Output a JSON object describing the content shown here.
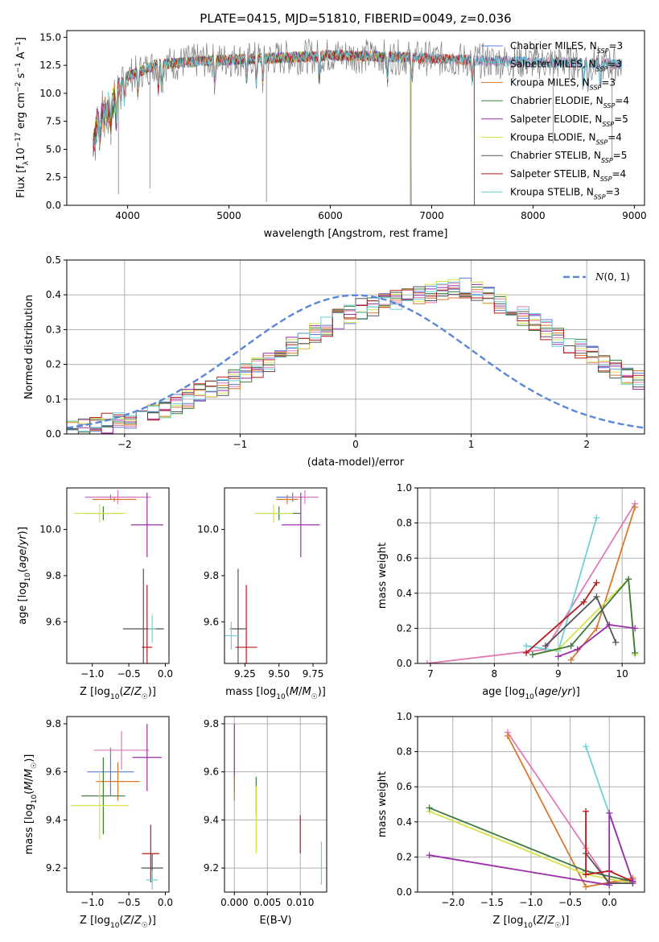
{
  "figure_title": "PLATE=0415, MJD=51810, FIBERID=0049, z=0.036",
  "colors": {
    "Chabrier MILES": "#5b7fd6",
    "Salpeter MILES": "#e07ab4",
    "Kroupa MILES": "#d9782c",
    "Chabrier ELODIE": "#3d7a3d",
    "Salpeter ELODIE": "#9b2ea8",
    "Kroupa ELODIE": "#d5e24a",
    "Chabrier STELIB": "#555555",
    "Salpeter STELIB": "#b81c1c",
    "Kroupa STELIB": "#6fd0d8",
    "grid": "#b0b0b0",
    "gaussian": "#5b87d6"
  },
  "chart_data": [
    {
      "id": "spectrum",
      "type": "line",
      "xlabel": "wavelength [Angstrom, rest frame]",
      "ylabel": "Flux [f",
      "xlim": [
        3400,
        9100
      ],
      "ylim": [
        0,
        15.6
      ],
      "xticks": [
        4000,
        5000,
        6000,
        7000,
        8000,
        9000
      ],
      "yticks": [
        0.0,
        2.5,
        5.0,
        7.5,
        10.0,
        12.5,
        15.0
      ],
      "grid": false,
      "legend_position": "top-right",
      "data_start": 3660,
      "data_end": 8880,
      "continuum": {
        "x": [
          3660,
          3700,
          3800,
          3900,
          4000,
          4100,
          4300,
          4500,
          4700,
          5000,
          5300,
          5600,
          6000,
          6500,
          7000,
          7500,
          8000,
          8500,
          8880
        ],
        "y": [
          6.5,
          8.5,
          10.0,
          10.8,
          11.5,
          11.9,
          12.6,
          12.7,
          12.9,
          13.0,
          13.1,
          13.2,
          13.4,
          13.3,
          13.1,
          12.9,
          12.8,
          12.7,
          12.6
        ]
      },
      "series": [
        {
          "name": "Chabrier MILES, N_SSP=3",
          "label_pre": "Chabrier MILES, N",
          "label_sub": "SSP",
          "label_post": "=3",
          "end": 8880
        },
        {
          "name": "Salpeter MILES, N_SSP=3",
          "label_pre": "Salpeter MILES, N",
          "label_sub": "SSP",
          "label_post": "=3",
          "end": 8880
        },
        {
          "name": "Kroupa MILES, N_SSP=3",
          "label_pre": "Kroupa MILES, N",
          "label_sub": "SSP",
          "label_post": "=3",
          "end": 7420
        },
        {
          "name": "Chabrier ELODIE, N_SSP=4",
          "label_pre": "Chabrier ELODIE, N",
          "label_sub": "SSP",
          "label_post": "=4",
          "end": 6800
        },
        {
          "name": "Salpeter ELODIE, N_SSP=5",
          "label_pre": "Salpeter ELODIE, N",
          "label_sub": "SSP",
          "label_post": "=5",
          "end": 6800
        },
        {
          "name": "Kroupa ELODIE, N_SSP=4",
          "label_pre": "Kroupa ELODIE, N",
          "label_sub": "SSP",
          "label_post": "=4",
          "end": 6800
        },
        {
          "name": "Chabrier STELIB, N_SSP=5",
          "label_pre": "Chabrier STELIB, N",
          "label_sub": "SSP",
          "label_post": "=5",
          "end": 8880
        },
        {
          "name": "Salpeter STELIB, N_SSP=4",
          "label_pre": "Salpeter STELIB, N",
          "label_sub": "SSP",
          "label_post": "=4",
          "end": 7420
        },
        {
          "name": "Kroupa STELIB, N_SSP=3",
          "label_pre": "Kroupa STELIB, N",
          "label_sub": "SSP",
          "label_post": "=3",
          "end": 8880
        }
      ],
      "observed_color": "#808080"
    },
    {
      "id": "residuals",
      "type": "bar",
      "xlabel": "(data-model)/error",
      "ylabel": "Normed distribution",
      "xlim": [
        -2.5,
        2.5
      ],
      "ylim": [
        0,
        0.5
      ],
      "xticks": [
        -2,
        -1,
        0,
        1,
        2
      ],
      "xtick_labels": [
        "−2",
        "−1",
        "0",
        "1",
        "2"
      ],
      "yticks": [
        0.0,
        0.1,
        0.2,
        0.3,
        0.4,
        0.5
      ],
      "grid": true,
      "bin_width": 0.1,
      "x_first": -2.5,
      "counts_mean": [
        0.015,
        0.02,
        0.025,
        0.03,
        0.04,
        0.045,
        0.05,
        0.06,
        0.07,
        0.085,
        0.1,
        0.115,
        0.125,
        0.14,
        0.155,
        0.175,
        0.19,
        0.205,
        0.225,
        0.25,
        0.27,
        0.29,
        0.31,
        0.33,
        0.345,
        0.36,
        0.365,
        0.375,
        0.385,
        0.39,
        0.4,
        0.405,
        0.41,
        0.415,
        0.42,
        0.41,
        0.395,
        0.375,
        0.36,
        0.34,
        0.32,
        0.3,
        0.28,
        0.26,
        0.245,
        0.225,
        0.205,
        0.19,
        0.17,
        0.155,
        0.14,
        0.125,
        0.11,
        0.095,
        0.085,
        0.075,
        0.065,
        0.055,
        0.05,
        0.04,
        0.035,
        0.03,
        0.025,
        0.02,
        0.018
      ],
      "gaussian_legend": "N(0, 1)"
    },
    {
      "id": "z-age",
      "type": "scatter",
      "xlabel": "Z [log10(Z/Z☉)]",
      "ylabel": "age  [log10(age/yr)]",
      "xlim": [
        -1.35,
        0.05
      ],
      "ylim": [
        9.42,
        10.18
      ],
      "xticks": [
        -1.0,
        -0.5,
        0.0
      ],
      "xtick_labels": [
        "−1.0",
        "−0.5",
        "0.0"
      ],
      "yticks": [
        9.6,
        9.8,
        10.0
      ],
      "grid": false,
      "points": [
        {
          "model": "Chabrier MILES",
          "x": -0.75,
          "y": 10.14,
          "xerr": 0.35,
          "yerr": 0.01
        },
        {
          "model": "Salpeter MILES",
          "x": -0.65,
          "y": 10.14,
          "xerr": 0.45,
          "yerr": 0.03
        },
        {
          "model": "Kroupa MILES",
          "x": -0.7,
          "y": 10.13,
          "xerr": 0.3,
          "yerr": 0.01
        },
        {
          "model": "Chabrier ELODIE",
          "x": -0.85,
          "y": 10.07,
          "xerr": 0.25,
          "yerr": 0.03
        },
        {
          "model": "Salpeter ELODIE",
          "x": -0.25,
          "y": 10.02,
          "xerr": 0.22,
          "yerr": 0.14
        },
        {
          "model": "Kroupa ELODIE",
          "x": -0.9,
          "y": 10.07,
          "xerr": 0.35,
          "yerr": 0.04
        },
        {
          "model": "Chabrier STELIB",
          "x": -0.3,
          "y": 9.57,
          "xerr": 0.28,
          "yerr": 0.26
        },
        {
          "model": "Salpeter STELIB",
          "x": -0.25,
          "y": 9.49,
          "xerr": 0.07,
          "yerr": 0.27
        },
        {
          "model": "Kroupa STELIB",
          "x": -0.18,
          "y": 9.57,
          "xerr": 0.05,
          "yerr": 0.06
        }
      ]
    },
    {
      "id": "mass-age",
      "type": "scatter",
      "xlabel": "mass [log10(M/M☉)]",
      "ylabel": "",
      "xlim": [
        9.1,
        9.85
      ],
      "ylim": [
        9.42,
        10.18
      ],
      "xticks": [
        9.25,
        9.5,
        9.75
      ],
      "xtick_labels": [
        "9.25",
        "9.50",
        "9.75"
      ],
      "yticks": [
        9.6,
        9.8,
        10.0
      ],
      "grid": false,
      "points": [
        {
          "model": "Chabrier MILES",
          "x": 9.6,
          "y": 10.14,
          "xerr": 0.12,
          "yerr": 0.02
        },
        {
          "model": "Salpeter MILES",
          "x": 9.69,
          "y": 10.14,
          "xerr": 0.1,
          "yerr": 0.03
        },
        {
          "model": "Kroupa MILES",
          "x": 9.56,
          "y": 10.13,
          "xerr": 0.08,
          "yerr": 0.02
        },
        {
          "model": "Chabrier ELODIE",
          "x": 9.5,
          "y": 10.07,
          "xerr": 0.16,
          "yerr": 0.03
        },
        {
          "model": "Salpeter ELODIE",
          "x": 9.66,
          "y": 10.02,
          "xerr": 0.14,
          "yerr": 0.14
        },
        {
          "model": "Kroupa ELODIE",
          "x": 9.46,
          "y": 10.07,
          "xerr": 0.14,
          "yerr": 0.04
        },
        {
          "model": "Chabrier STELIB",
          "x": 9.2,
          "y": 9.57,
          "xerr": 0.06,
          "yerr": 0.26
        },
        {
          "model": "Salpeter STELIB",
          "x": 9.26,
          "y": 9.49,
          "xerr": 0.08,
          "yerr": 0.27
        },
        {
          "model": "Kroupa STELIB",
          "x": 9.15,
          "y": 9.54,
          "xerr": 0.06,
          "yerr": 0.06
        }
      ]
    },
    {
      "id": "age-weight",
      "type": "line",
      "xlabel": "age  [log10(age/yr)]",
      "ylabel": "mass weight",
      "xlim": [
        6.8,
        10.35
      ],
      "ylim": [
        0,
        1.0
      ],
      "xticks": [
        7,
        8,
        9,
        10
      ],
      "yticks": [
        0.0,
        0.2,
        0.4,
        0.6,
        0.8,
        1.0
      ],
      "grid": true,
      "series": [
        {
          "model": "Salpeter MILES",
          "x": [
            6.95,
            8.8,
            10.2
          ],
          "y": [
            0.0,
            0.08,
            0.91
          ]
        },
        {
          "model": "Kroupa MILES",
          "x": [
            9.2,
            9.6,
            10.2
          ],
          "y": [
            0.02,
            0.2,
            0.89
          ]
        },
        {
          "model": "Kroupa STELIB",
          "x": [
            8.5,
            9.0,
            9.6
          ],
          "y": [
            0.1,
            0.07,
            0.83
          ]
        },
        {
          "model": "Kroupa ELODIE",
          "x": [
            8.6,
            9.0,
            10.1,
            10.2
          ],
          "y": [
            0.05,
            0.08,
            0.48,
            0.05
          ]
        },
        {
          "model": "Chabrier ELODIE",
          "x": [
            8.6,
            9.2,
            10.1,
            10.2
          ],
          "y": [
            0.05,
            0.1,
            0.48,
            0.06
          ]
        },
        {
          "model": "Chabrier STELIB",
          "x": [
            8.8,
            9.6,
            9.9
          ],
          "y": [
            0.1,
            0.38,
            0.12
          ]
        },
        {
          "model": "Salpeter STELIB",
          "x": [
            8.5,
            9.4,
            9.6
          ],
          "y": [
            0.06,
            0.35,
            0.46
          ]
        },
        {
          "model": "Salpeter ELODIE",
          "x": [
            9.0,
            9.3,
            9.8,
            10.2
          ],
          "y": [
            0.04,
            0.08,
            0.22,
            0.2
          ]
        }
      ]
    },
    {
      "id": "z-mass",
      "type": "scatter",
      "xlabel": "Z [log10(Z/Z☉)]",
      "ylabel": "mass [log10(M/M☉)]",
      "xlim": [
        -1.35,
        0.05
      ],
      "ylim": [
        9.1,
        9.83
      ],
      "xticks": [
        -1.0,
        -0.5,
        0.0
      ],
      "xtick_labels": [
        "−1.0",
        "−0.5",
        "0.0"
      ],
      "yticks": [
        9.2,
        9.4,
        9.6,
        9.8
      ],
      "grid": false,
      "points": [
        {
          "model": "Chabrier MILES",
          "x": -0.75,
          "y": 9.6,
          "xerr": 0.32,
          "yerr": 0.1
        },
        {
          "model": "Salpeter MILES",
          "x": -0.6,
          "y": 9.69,
          "xerr": 0.38,
          "yerr": 0.08
        },
        {
          "model": "Kroupa MILES",
          "x": -0.65,
          "y": 9.56,
          "xerr": 0.3,
          "yerr": 0.08
        },
        {
          "model": "Chabrier ELODIE",
          "x": -0.85,
          "y": 9.5,
          "xerr": 0.3,
          "yerr": 0.16
        },
        {
          "model": "Salpeter ELODIE",
          "x": -0.25,
          "y": 9.66,
          "xerr": 0.2,
          "yerr": 0.14
        },
        {
          "model": "Kroupa ELODIE",
          "x": -0.9,
          "y": 9.46,
          "xerr": 0.4,
          "yerr": 0.14
        },
        {
          "model": "Chabrier STELIB",
          "x": -0.18,
          "y": 9.2,
          "xerr": 0.15,
          "yerr": 0.06
        },
        {
          "model": "Salpeter STELIB",
          "x": -0.2,
          "y": 9.26,
          "xerr": 0.12,
          "yerr": 0.12
        },
        {
          "model": "Kroupa STELIB",
          "x": -0.18,
          "y": 9.15,
          "xerr": 0.08,
          "yerr": 0.04
        }
      ]
    },
    {
      "id": "ebv-mass",
      "type": "scatter",
      "xlabel": "E(B-V)",
      "ylabel": "",
      "xlim": [
        -0.0015,
        0.014
      ],
      "ylim": [
        9.1,
        9.83
      ],
      "xticks": [
        0.0,
        0.005,
        0.01
      ],
      "xtick_labels": [
        "0.000",
        "0.005",
        "0.010"
      ],
      "yticks": [
        9.2,
        9.4,
        9.6,
        9.8
      ],
      "grid": true,
      "points": [
        {
          "model": "Salpeter ELODIE",
          "x": 0.0,
          "y": 9.66,
          "xerr": 0,
          "yerr": 0.14
        },
        {
          "model": "Kroupa MILES",
          "x": 0.0,
          "y": 9.53,
          "xerr": 0,
          "yerr": 0.05
        },
        {
          "model": "Chabrier ELODIE",
          "x": 0.0033,
          "y": 9.5,
          "xerr": 0,
          "yerr": 0.08
        },
        {
          "model": "Kroupa ELODIE",
          "x": 0.0033,
          "y": 9.4,
          "xerr": 0,
          "yerr": 0.14
        },
        {
          "model": "Salpeter STELIB",
          "x": 0.01,
          "y": 9.34,
          "xerr": 0,
          "yerr": 0.08
        },
        {
          "model": "Kroupa STELIB",
          "x": 0.0132,
          "y": 9.22,
          "xerr": 0,
          "yerr": 0.09
        }
      ]
    },
    {
      "id": "z-weight",
      "type": "line",
      "xlabel": "Z [log10(Z/Z☉)]",
      "ylabel": "mass weight",
      "xlim": [
        -2.45,
        0.45
      ],
      "ylim": [
        0,
        1.0
      ],
      "xticks": [
        -2.0,
        -1.5,
        -1.0,
        -0.5,
        0.0
      ],
      "xtick_labels": [
        "−2.0",
        "−1.5",
        "−1.0",
        "−0.5",
        "0.0"
      ],
      "yticks": [
        0.0,
        0.2,
        0.4,
        0.6,
        0.8,
        1.0
      ],
      "grid": true,
      "series": [
        {
          "model": "Salpeter MILES",
          "x": [
            -1.3,
            -0.3,
            0.0,
            0.3
          ],
          "y": [
            0.91,
            0.25,
            0.05,
            0.07
          ]
        },
        {
          "model": "Kroupa MILES",
          "x": [
            -1.3,
            -0.3,
            0.3
          ],
          "y": [
            0.89,
            0.03,
            0.08
          ]
        },
        {
          "model": "Kroupa STELIB",
          "x": [
            -0.3,
            0.3
          ],
          "y": [
            0.83,
            0.06
          ]
        },
        {
          "model": "Kroupa ELODIE",
          "x": [
            -2.3,
            -0.3,
            0.3
          ],
          "y": [
            0.46,
            0.1,
            0.05
          ]
        },
        {
          "model": "Chabrier ELODIE",
          "x": [
            -2.3,
            -0.3,
            0.3
          ],
          "y": [
            0.48,
            0.12,
            0.06
          ]
        },
        {
          "model": "Chabrier STELIB",
          "x": [
            -0.3,
            0.0,
            0.3
          ],
          "y": [
            0.22,
            0.05,
            0.05
          ]
        },
        {
          "model": "Salpeter STELIB",
          "x": [
            -0.3,
            -0.3,
            0.0,
            0.3
          ],
          "y": [
            0.46,
            0.1,
            0.12,
            0.06
          ]
        },
        {
          "model": "Salpeter ELODIE",
          "x": [
            -2.3,
            0.0,
            0.0,
            0.3
          ],
          "y": [
            0.21,
            0.04,
            0.45,
            0.06
          ]
        }
      ]
    }
  ]
}
